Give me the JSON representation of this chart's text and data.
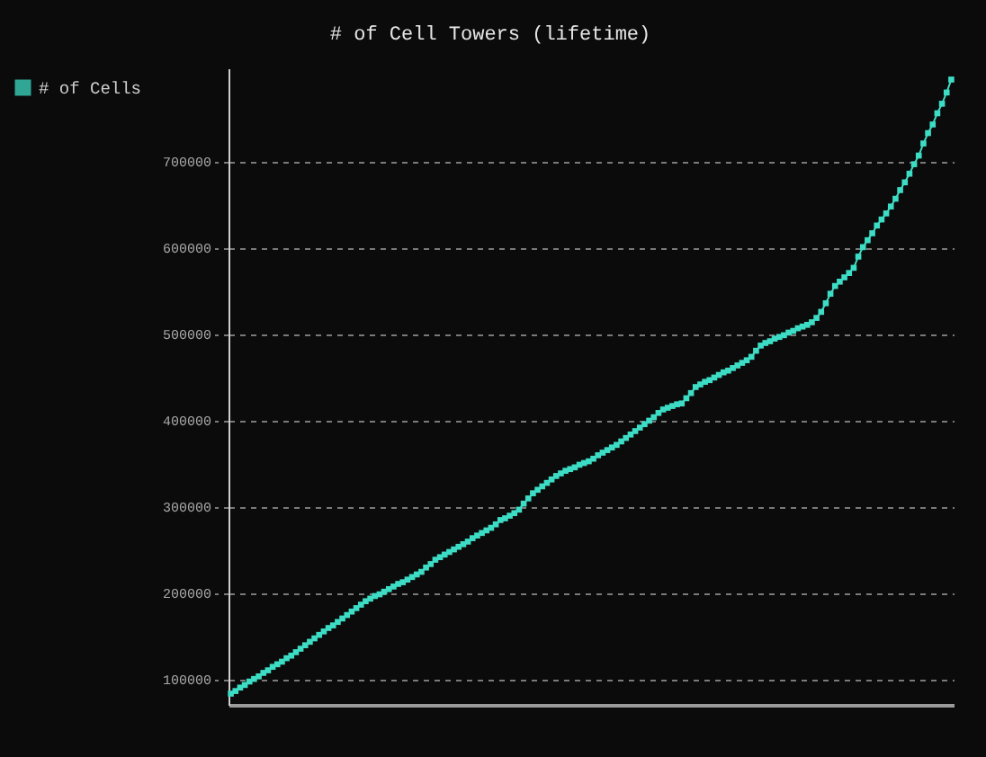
{
  "chart_data": {
    "type": "line",
    "title": "# of Cell Towers (lifetime)",
    "categories": [
      null,
      null,
      null,
      null,
      null,
      null,
      null,
      null,
      null,
      null,
      null,
      null,
      null,
      null,
      null,
      null,
      null,
      null,
      null,
      null,
      null,
      null,
      null,
      null,
      null,
      null,
      null,
      null,
      null,
      null,
      null,
      null,
      null,
      null,
      null,
      null,
      null,
      null,
      null,
      null,
      null,
      null,
      null,
      null,
      null,
      null,
      null,
      null,
      null,
      null,
      null,
      null,
      null,
      null,
      null,
      null,
      null,
      null,
      null,
      null,
      null,
      null,
      null,
      null,
      null,
      null,
      null,
      null,
      null,
      null,
      null,
      null,
      null,
      null,
      null,
      null,
      null,
      null,
      null,
      null,
      null,
      null,
      null,
      null,
      null,
      null,
      null,
      null,
      null,
      null,
      null,
      null,
      null,
      null,
      null,
      null,
      null,
      null,
      null,
      null,
      null,
      null,
      null,
      null,
      null,
      null,
      null,
      null,
      null,
      null,
      null,
      null,
      null,
      null,
      null,
      null,
      null,
      null,
      null,
      null,
      null,
      null,
      null,
      null,
      null,
      null,
      null,
      null,
      null,
      null,
      null,
      null,
      null,
      null,
      null,
      null,
      null,
      null,
      null,
      null,
      null,
      null,
      null,
      null,
      null,
      null,
      null,
      null,
      null,
      null,
      null,
      null,
      null,
      null,
      null,
      null
    ],
    "series": [
      {
        "name": "# of Cells",
        "color": "#3ddcc4",
        "values": [
          84000,
          87000,
          91000,
          94000,
          98000,
          101000,
          104000,
          108000,
          111000,
          115000,
          118000,
          121000,
          125000,
          128000,
          132000,
          136000,
          140000,
          144000,
          148000,
          152000,
          156000,
          160000,
          163000,
          167000,
          171000,
          175000,
          179000,
          183000,
          187000,
          191000,
          194000,
          197000,
          199000,
          202000,
          205000,
          208000,
          211000,
          213000,
          216000,
          219000,
          222000,
          225000,
          230000,
          234000,
          239000,
          242000,
          245000,
          248000,
          251000,
          254000,
          257000,
          260000,
          264000,
          267000,
          270000,
          273000,
          276000,
          280000,
          285000,
          287000,
          290000,
          293000,
          297000,
          304000,
          310000,
          316000,
          320000,
          324000,
          328000,
          332000,
          336000,
          339000,
          342000,
          344000,
          346000,
          349000,
          351000,
          353000,
          356000,
          360000,
          363000,
          366000,
          369000,
          372000,
          376000,
          380000,
          384000,
          388000,
          392000,
          396000,
          400000,
          404000,
          409000,
          413000,
          415000,
          417000,
          419000,
          420000,
          426000,
          432000,
          439000,
          442000,
          445000,
          447000,
          450000,
          453000,
          456000,
          458000,
          461000,
          464000,
          467000,
          470000,
          474000,
          481000,
          487000,
          490000,
          492000,
          495000,
          497000,
          499000,
          502000,
          504000,
          507000,
          509000,
          511000,
          514000,
          519000,
          526000,
          536000,
          547000,
          556000,
          561000,
          566000,
          571000,
          577000,
          590000,
          601000,
          609000,
          617000,
          626000,
          633000,
          640000,
          648000,
          657000,
          667000,
          676000,
          686000,
          697000,
          707000,
          721000,
          733000,
          743000,
          756000,
          767000,
          780000,
          795000
        ]
      }
    ],
    "ylim": [
      71000,
      808000
    ],
    "yticks": [
      100000,
      200000,
      300000,
      400000,
      500000,
      600000,
      700000
    ],
    "grid": "y",
    "legend": "top left",
    "marker": "square",
    "line_style": "solid",
    "tick_labels": "y"
  }
}
